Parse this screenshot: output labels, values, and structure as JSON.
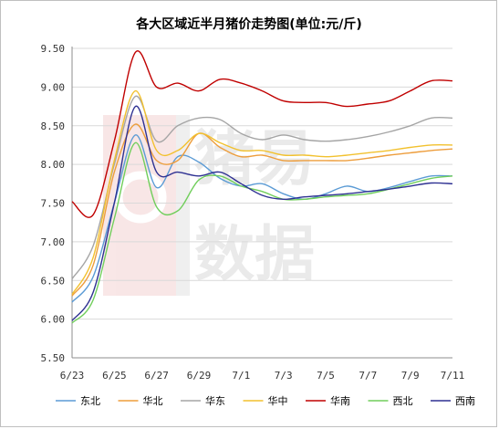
{
  "chart_data": {
    "type": "line",
    "title": "各大区域近半月猪价走势图(单位:元/斤)",
    "xlabel": "",
    "ylabel": "",
    "x_tick_labels": [
      "6/23",
      "6/25",
      "6/27",
      "6/29",
      "7/1",
      "7/3",
      "7/5",
      "7/7",
      "7/9",
      "7/11"
    ],
    "ylim": [
      5.5,
      9.5
    ],
    "y_ticks": [
      "5.50",
      "6.00",
      "6.50",
      "7.00",
      "7.50",
      "8.00",
      "8.50",
      "9.00",
      "9.50"
    ],
    "grid": "horizontal",
    "legend_position": "bottom",
    "x_count": 19,
    "series": [
      {
        "name": "东北",
        "color": "#5b9bd5",
        "values": [
          6.22,
          6.55,
          7.5,
          8.38,
          7.7,
          8.1,
          8.03,
          7.82,
          7.72,
          7.75,
          7.62,
          7.55,
          7.62,
          7.72,
          7.65,
          7.7,
          7.78,
          7.85,
          7.85
        ]
      },
      {
        "name": "华北",
        "color": "#ed9d3c",
        "values": [
          6.3,
          6.7,
          7.9,
          8.52,
          8.05,
          8.05,
          8.4,
          8.22,
          8.1,
          8.12,
          8.05,
          8.05,
          8.05,
          8.05,
          8.08,
          8.12,
          8.15,
          8.18,
          8.2
        ]
      },
      {
        "name": "华东",
        "color": "#a5a5a5",
        "values": [
          6.52,
          6.95,
          8.0,
          8.88,
          8.3,
          8.5,
          8.6,
          8.58,
          8.4,
          8.32,
          8.38,
          8.32,
          8.3,
          8.32,
          8.36,
          8.42,
          8.5,
          8.6,
          8.6
        ]
      },
      {
        "name": "华中",
        "color": "#f2c12e",
        "values": [
          6.32,
          6.8,
          8.05,
          8.95,
          8.18,
          8.18,
          8.4,
          8.28,
          8.18,
          8.18,
          8.12,
          8.12,
          8.1,
          8.12,
          8.15,
          8.18,
          8.22,
          8.25,
          8.25
        ]
      },
      {
        "name": "华南",
        "color": "#c00000",
        "values": [
          7.52,
          7.35,
          8.3,
          9.45,
          9.0,
          9.05,
          8.95,
          9.1,
          9.05,
          8.95,
          8.82,
          8.8,
          8.8,
          8.75,
          8.78,
          8.82,
          8.95,
          9.08,
          9.08
        ]
      },
      {
        "name": "西北",
        "color": "#70ce5b",
        "values": [
          5.95,
          6.25,
          7.3,
          8.28,
          7.45,
          7.4,
          7.8,
          7.85,
          7.72,
          7.65,
          7.55,
          7.55,
          7.58,
          7.6,
          7.62,
          7.68,
          7.75,
          7.82,
          7.85
        ]
      },
      {
        "name": "西南",
        "color": "#2e3192",
        "values": [
          5.98,
          6.35,
          7.5,
          8.75,
          7.9,
          7.9,
          7.85,
          7.9,
          7.75,
          7.6,
          7.55,
          7.58,
          7.6,
          7.62,
          7.65,
          7.68,
          7.72,
          7.76,
          7.75
        ]
      }
    ]
  }
}
